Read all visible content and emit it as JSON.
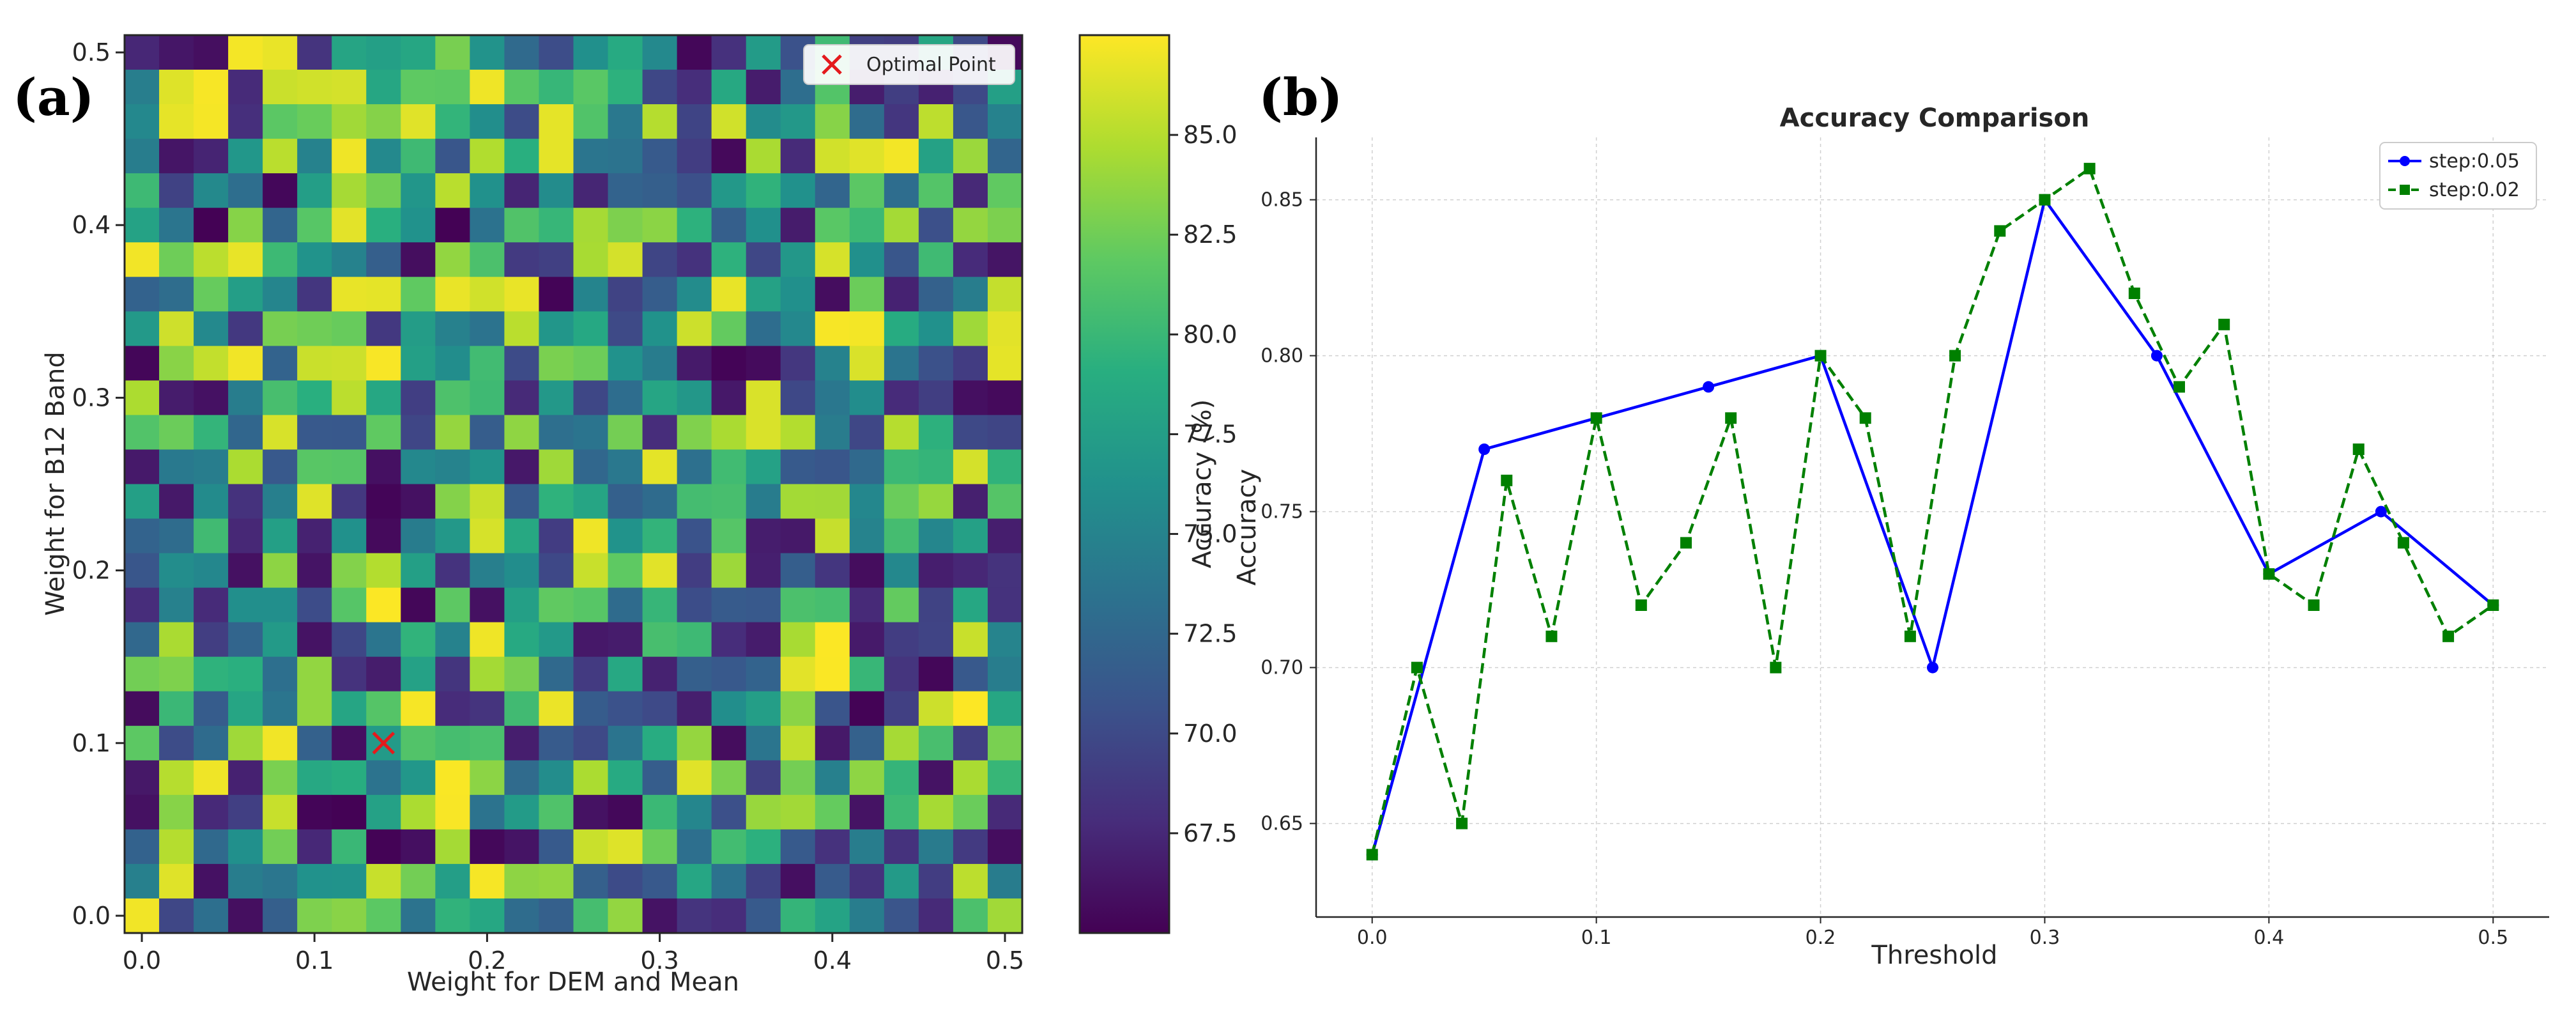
{
  "chart_data": [
    {
      "panel_label": "(a)",
      "type": "heatmap",
      "xlabel": "Weight for DEM and Mean",
      "ylabel": "Weight for B12 Band",
      "xticks": [
        "0.0",
        "0.1",
        "0.2",
        "0.3",
        "0.4",
        "0.5"
      ],
      "yticks": [
        "0.0",
        "0.1",
        "0.2",
        "0.3",
        "0.4",
        "0.5"
      ],
      "xlim": [
        -0.01,
        0.51
      ],
      "ylim": [
        -0.01,
        0.51
      ],
      "grid_size": [
        26,
        26
      ],
      "colormap": "viridis",
      "colorbar": {
        "label": "Accuracy (%)",
        "range": [
          65.0,
          87.5
        ],
        "ticks": [
          "67.5",
          "70.0",
          "72.5",
          "75.0",
          "77.5",
          "80.0",
          "82.5",
          "85.0"
        ]
      },
      "marker": {
        "label": "Optimal Point",
        "x": 0.14,
        "y": 0.1,
        "color": "#e41a1c"
      },
      "legend_position": "top-right",
      "seed": 1234
    },
    {
      "panel_label": "(b)",
      "type": "line",
      "title": "Accuracy Comparison",
      "xlabel": "Threshold",
      "ylabel": "Accuracy",
      "xlim": [
        -0.025,
        0.525
      ],
      "ylim": [
        0.62,
        0.87
      ],
      "xticks": [
        "0.0",
        "0.1",
        "0.2",
        "0.3",
        "0.4",
        "0.5"
      ],
      "yticks": [
        "0.65",
        "0.70",
        "0.75",
        "0.80",
        "0.85"
      ],
      "grid": true,
      "legend_position": "top-right",
      "series": [
        {
          "name": "step:0.05",
          "color": "#0000ff",
          "style": "solid",
          "marker": "circle",
          "x": [
            0.0,
            0.05,
            0.1,
            0.15,
            0.2,
            0.25,
            0.3,
            0.35,
            0.4,
            0.45,
            0.5
          ],
          "y": [
            0.64,
            0.77,
            0.78,
            0.79,
            0.8,
            0.7,
            0.85,
            0.8,
            0.73,
            0.75,
            0.72
          ]
        },
        {
          "name": "step:0.02",
          "color": "#008000",
          "style": "dashed",
          "marker": "square",
          "x": [
            0.0,
            0.02,
            0.04,
            0.06,
            0.08,
            0.1,
            0.12,
            0.14,
            0.16,
            0.18,
            0.2,
            0.22,
            0.24,
            0.26,
            0.28,
            0.3,
            0.32,
            0.34,
            0.36,
            0.38,
            0.4,
            0.42,
            0.44,
            0.46,
            0.48,
            0.5
          ],
          "y": [
            0.64,
            0.7,
            0.65,
            0.76,
            0.71,
            0.78,
            0.72,
            0.74,
            0.78,
            0.7,
            0.8,
            0.78,
            0.71,
            0.8,
            0.84,
            0.85,
            0.86,
            0.82,
            0.79,
            0.81,
            0.73,
            0.72,
            0.77,
            0.74,
            0.71,
            0.72
          ]
        }
      ]
    }
  ]
}
